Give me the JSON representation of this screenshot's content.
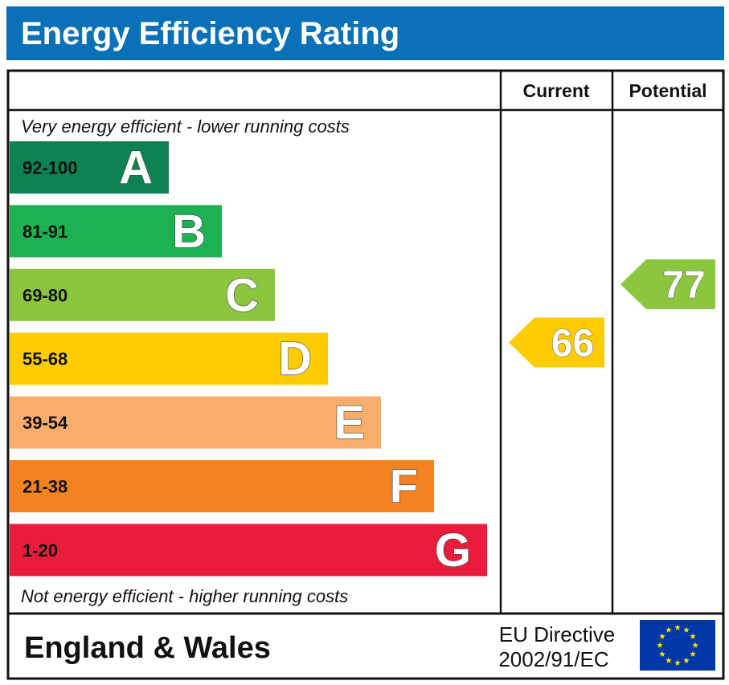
{
  "title": "Energy Efficiency Rating",
  "chart_data": {
    "type": "bar",
    "columns": {
      "current": "Current",
      "potential": "Potential"
    },
    "top_note": "Very energy efficient - lower running costs",
    "bottom_note": "Not energy efficient - higher running costs",
    "bands": [
      {
        "letter": "A",
        "range": "92-100",
        "color": "#0c8251"
      },
      {
        "letter": "B",
        "range": "81-91",
        "color": "#1cb151"
      },
      {
        "letter": "C",
        "range": "69-80",
        "color": "#8cc63f"
      },
      {
        "letter": "D",
        "range": "55-68",
        "color": "#ffcc00"
      },
      {
        "letter": "E",
        "range": "39-54",
        "color": "#f8ae6a"
      },
      {
        "letter": "F",
        "range": "21-38",
        "color": "#f38221"
      },
      {
        "letter": "G",
        "range": "1-20",
        "color": "#ea1c3c"
      }
    ],
    "current": {
      "value": 66,
      "band": "D",
      "color": "#ffcc00"
    },
    "potential": {
      "value": 77,
      "band": "C",
      "color": "#8cc63f"
    }
  },
  "footer": {
    "region": "England & Wales",
    "directive_line1": "EU Directive",
    "directive_line2": "2002/91/EC"
  },
  "colors": {
    "title_bar": "#0a71b8",
    "eu_flag": "#0038a8",
    "eu_stars": "#ffdd00"
  }
}
